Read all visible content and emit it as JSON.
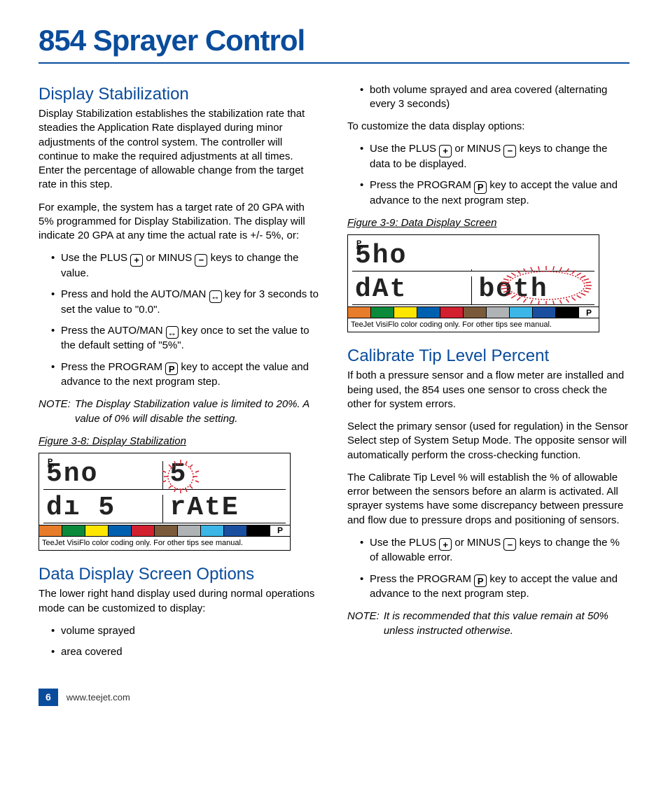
{
  "page": {
    "title": "854 Sprayer Control",
    "number": "6",
    "url": "www.teejet.com"
  },
  "icons": {
    "plus": "+",
    "minus": "−",
    "auto": "↔",
    "program": "P"
  },
  "lcd_colors": [
    "#e77c2a",
    "#0a8a3a",
    "#ffe600",
    "#0060b0",
    "#d2202f",
    "#7a5a3a",
    "#b0b3b6",
    "#3bb6e6",
    "#1a4fa0",
    "#000000"
  ],
  "lcd_foot": "TeeJet VisiFlo color coding only. For other tips see manual.",
  "lcd_p": "P",
  "pro": {
    "top": "P",
    "sub": "RO"
  },
  "sec1": {
    "h": "Display Stabilization",
    "p1": "Display Stabilization establishes the stabilization rate that steadies the Application Rate displayed during minor adjustments of the control system. The controller will continue to make the required adjustments at all times. Enter the percentage of allowable change from the target rate in this step.",
    "p2": "For example, the system has a target rate of 20 GPA with 5% programmed for Display Stabilization. The display will indicate 20 GPA at any time the actual rate is +/- 5%, or:",
    "b1a": "Use the PLUS ",
    "b1b": " or MINUS ",
    "b1c": " keys to change the value.",
    "b2a": "Press and hold the AUTO/MAN ",
    "b2b": " key for 3 seconds to set the value to \"0.0\".",
    "b3a": "Press the AUTO/MAN ",
    "b3b": " key once to set the value to the default setting of \"5%\".",
    "b4a": "Press the PROGRAM ",
    "b4b": " key to accept the value and advance to the next program step.",
    "note_label": "NOTE:",
    "note": "The Display Stabilization value is limited to 20%. A value of 0% will disable the setting.",
    "fig": "Figure 3-8: Display Stabilization",
    "lcd": {
      "tl": "5no",
      "tr": "5",
      "bl": "dı 5",
      "br": "rAtE"
    }
  },
  "sec2": {
    "h": "Data Display Screen Options",
    "p1": "The lower right hand display used during normal operations mode can be customized to display:",
    "b1": "volume sprayed",
    "b2": "area covered",
    "b3": "both volume sprayed and area covered (alternating every 3 seconds)",
    "p2": "To customize the data display options:",
    "c1a": "Use the PLUS ",
    "c1b": " or MINUS ",
    "c1c": " keys to change the data to be displayed.",
    "c2a": "Press the PROGRAM ",
    "c2b": " key to accept the value and advance to the next program step.",
    "fig": "Figure 3-9: Data Display Screen",
    "lcd": {
      "tl": "5ho",
      "tr": "",
      "bl": "dAt",
      "br": "both"
    }
  },
  "sec3": {
    "h": "Calibrate Tip Level Percent",
    "p1": "If both a pressure sensor and a flow meter are installed and being used, the 854 uses one sensor to cross check the other for system errors.",
    "p2": "Select the primary sensor (used for regulation) in the Sensor Select step of System Setup Mode. The opposite sensor will automatically perform the cross-checking function.",
    "p3": "The Calibrate Tip Level % will establish the % of allowable error between the sensors before an alarm is activated. All sprayer systems have some discrepancy between pressure and flow due to pressure drops and positioning of sensors.",
    "b1a": "Use the PLUS ",
    "b1b": " or MINUS ",
    "b1c": " keys to change the % of allowable error.",
    "b2a": "Press the PROGRAM ",
    "b2b": " key to accept the value and advance to the next program step.",
    "note_label": "NOTE:",
    "note": "It is recommended that this value remain at 50% unless instructed otherwise."
  }
}
